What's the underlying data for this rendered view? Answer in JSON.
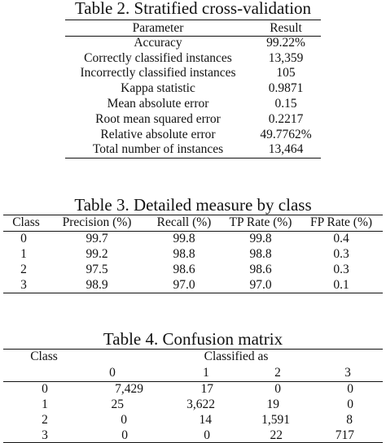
{
  "table2": {
    "caption": "Table 2. Stratified cross-validation",
    "headers": [
      "Parameter",
      "Result"
    ],
    "rows": [
      [
        "Accuracy",
        "99.22%"
      ],
      [
        "Correctly classified instances",
        "13,359"
      ],
      [
        "Incorrectly classified instances",
        "105"
      ],
      [
        "Kappa statistic",
        "0.9871"
      ],
      [
        "Mean absolute error",
        "0.15"
      ],
      [
        "Root mean squared error",
        "0.2217"
      ],
      [
        "Relative absolute error",
        "49.7762%"
      ],
      [
        "Total number of instances",
        "13,464"
      ]
    ]
  },
  "table3": {
    "caption": "Table 3. Detailed measure by class",
    "headers": [
      "Class",
      "Precision (%)",
      "Recall (%)",
      "TP Rate (%)",
      "FP Rate (%)"
    ],
    "rows": [
      [
        "0",
        "99.7",
        "99.8",
        "99.8",
        "0.4"
      ],
      [
        "1",
        "99.2",
        "98.8",
        "98.8",
        "0.3"
      ],
      [
        "2",
        "97.5",
        "98.6",
        "98.6",
        "0.3"
      ],
      [
        "3",
        "98.9",
        "97.0",
        "97.0",
        "0.1"
      ]
    ]
  },
  "table4": {
    "caption": "Table 4. Confusion matrix",
    "class_header": "Class",
    "classified_as_header": "Classified as",
    "column_labels": [
      "0",
      "1",
      "2",
      "3"
    ],
    "rows": [
      {
        "label": "0",
        "values": [
          "7,429",
          "17",
          "0",
          "0"
        ]
      },
      {
        "label": "1",
        "values": [
          "25",
          "3,622",
          "19",
          "0"
        ]
      },
      {
        "label": "2",
        "values": [
          "0",
          "14",
          "1,591",
          "8"
        ]
      },
      {
        "label": "3",
        "values": [
          "0",
          "0",
          "22",
          "717"
        ]
      }
    ]
  }
}
